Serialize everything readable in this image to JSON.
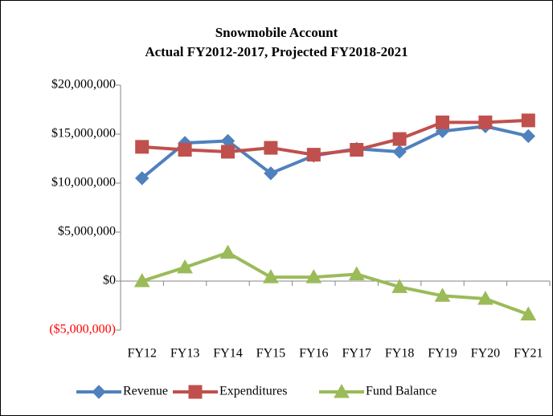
{
  "chart_data": {
    "type": "line",
    "title": "Snowmobile Account",
    "subtitle": "Actual FY2012-2017, Projected FY2018-2021",
    "categories": [
      "FY12",
      "FY13",
      "FY14",
      "FY15",
      "FY16",
      "FY17",
      "FY18",
      "FY19",
      "FY20",
      "FY21"
    ],
    "series": [
      {
        "name": "Revenue",
        "color": "#4f81bd",
        "marker": "diamond",
        "values": [
          10500000,
          14100000,
          14300000,
          11000000,
          12800000,
          13500000,
          13200000,
          15300000,
          15800000,
          14800000
        ]
      },
      {
        "name": "Expenditures",
        "color": "#c0504d",
        "marker": "square",
        "values": [
          13700000,
          13400000,
          13200000,
          13600000,
          12900000,
          13400000,
          14500000,
          16200000,
          16200000,
          16400000
        ]
      },
      {
        "name": "Fund Balance",
        "color": "#9bbb59",
        "marker": "triangle",
        "values": [
          0,
          1400000,
          2900000,
          400000,
          400000,
          700000,
          -600000,
          -1500000,
          -1800000,
          -3400000
        ]
      }
    ],
    "ylim": [
      -5000000,
      20000000
    ],
    "yticks": [
      {
        "value": -5000000,
        "label": "($5,000,000)"
      },
      {
        "value": 0,
        "label": "$0"
      },
      {
        "value": 5000000,
        "label": "$5,000,000"
      },
      {
        "value": 10000000,
        "label": "$10,000,000"
      },
      {
        "value": 15000000,
        "label": "$15,000,000"
      },
      {
        "value": 20000000,
        "label": "$20,000,000"
      }
    ],
    "negative_tick_color": "#ff0000",
    "legend": "bottom",
    "grid": false
  }
}
